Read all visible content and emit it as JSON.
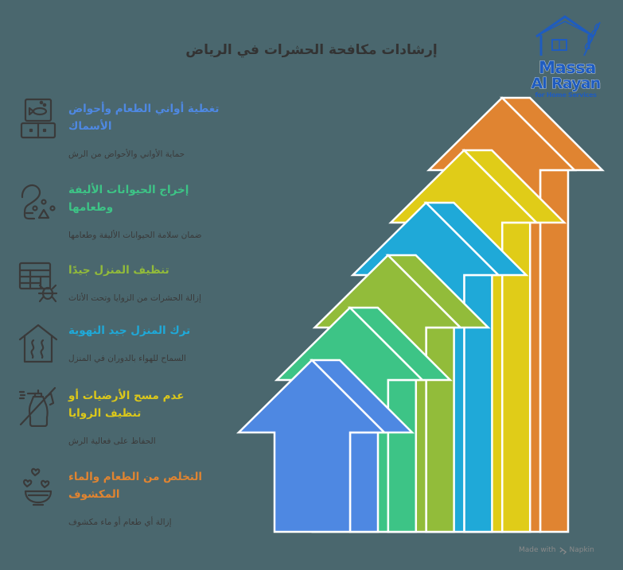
{
  "header": {
    "title": "إرشادات مكافحة الحشرات في الرياض"
  },
  "logo": {
    "name_line1": "Massa",
    "name_line2": "Al Rayan",
    "tagline": "for Home Services",
    "color": "#1F5CBF"
  },
  "steps": [
    {
      "icon": "fish-tank-icon",
      "title_lines": [
        "تغطية أواني الطعام وأحواض",
        "الأسماك"
      ],
      "description": "حماية الأواني والأحواض من الرش",
      "color": "#4E88E2"
    },
    {
      "icon": "pet-leash-paw-icon",
      "title_lines": [
        "إخراج الحيوانات الأليفة",
        "وطعامها"
      ],
      "description": "ضمان سلامة الحيوانات الأليفة وطعامها",
      "color": "#3DC486"
    },
    {
      "icon": "furniture-bug-icon",
      "title_lines": [
        "تنظيف المنزل جيدًا"
      ],
      "description": "إزالة الحشرات من الزوايا وتحت الأثاث",
      "color": "#92BB3A"
    },
    {
      "icon": "ventilated-house-icon",
      "title_lines": [
        "ترك المنزل جيد التهوية"
      ],
      "description": "السماح للهواء بالدوران في المنزل",
      "color": "#1FA9D8"
    },
    {
      "icon": "no-spray-bottle-icon",
      "title_lines": [
        "عدم مسح الأرضيات أو",
        "تنظيف الزوايا"
      ],
      "description": "الحفاظ على فعالية الرش",
      "color": "#DCC81A"
    },
    {
      "icon": "food-bowl-icon",
      "title_lines": [
        "التخلص من الطعام والماء",
        "المكشوف"
      ],
      "description": "إزالة أي طعام أو ماء مكشوف",
      "color": "#E08431"
    }
  ],
  "diagram": {
    "type": "stacked-3d-up-arrows",
    "arrow_count": 6,
    "order": "bottom-left (step 1) to top-right (step 6)",
    "arrow_colors": [
      "#4E88E2",
      "#3DC486",
      "#92BC3A",
      "#1FA9D8",
      "#E0CC18",
      "#E08431"
    ]
  },
  "footer": {
    "made_with": "Made with",
    "brand": "Napkin"
  },
  "theme": {
    "background": "#4A676E",
    "text": "#333333",
    "outline": "#FFFFFF"
  }
}
